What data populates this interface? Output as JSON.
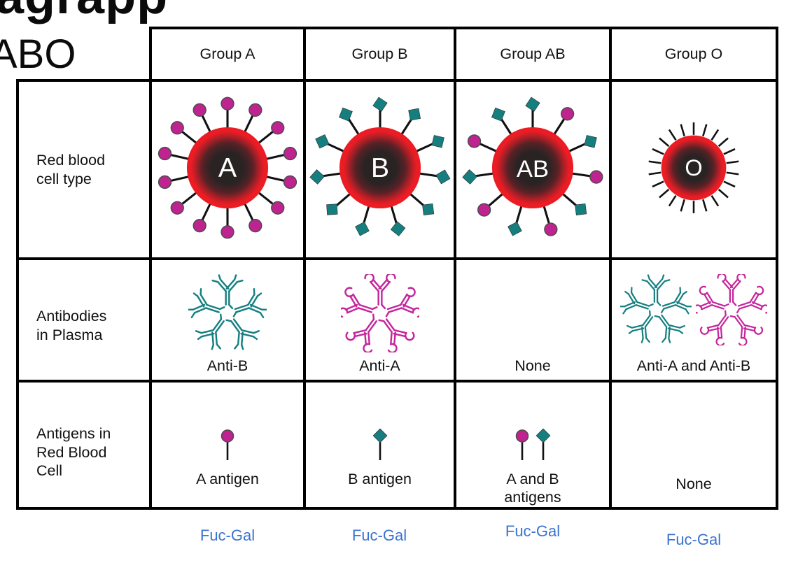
{
  "page": {
    "cropped_app_text": "agrapp",
    "title": "ABO"
  },
  "colors": {
    "antigen_a_magenta": "#bf2390",
    "antigen_b_teal": "#157f80",
    "antibody_anti_a_magenta": "#c5269c",
    "antibody_anti_b_teal": "#167f80",
    "rbc_red": "#ec1c24",
    "rbc_core": "#2a2324",
    "spike_black": "#111111",
    "fucgal_blue": "#3a73d0",
    "table_border": "#000000"
  },
  "table": {
    "row_headers": [
      {
        "lines": [
          "Red blood",
          "cell type"
        ]
      },
      {
        "lines": [
          "Antibodies",
          "in Plasma"
        ]
      },
      {
        "lines": [
          "Antigens in",
          "Red Blood",
          "Cell"
        ]
      }
    ],
    "groups": [
      {
        "header": "Group A",
        "cell_letter": "A",
        "surface_antigens": {
          "shape": "circle",
          "count": 14
        },
        "plasma_antibodies": {
          "label": "Anti-B",
          "stars": [
            "teal"
          ]
        },
        "antigens": {
          "label_lines": [
            "A antigen"
          ],
          "icons": [
            "circle"
          ]
        },
        "footer_label": "Fuc-Gal"
      },
      {
        "header": "Group B",
        "cell_letter": "B",
        "surface_antigens": {
          "shape": "diamond",
          "count": 11
        },
        "plasma_antibodies": {
          "label": "Anti-A",
          "stars": [
            "magenta"
          ]
        },
        "antigens": {
          "label_lines": [
            "B antigen"
          ],
          "icons": [
            "diamond"
          ]
        },
        "footer_label": "Fuc-Gal"
      },
      {
        "header": "Group AB",
        "cell_letter": "AB",
        "surface_antigens": {
          "shape": "alternating",
          "count": 11
        },
        "plasma_antibodies": {
          "label": "None",
          "stars": []
        },
        "antigens": {
          "label_lines": [
            "A and B",
            "antigens"
          ],
          "icons": [
            "circle",
            "diamond"
          ]
        },
        "footer_label": "Fuc-Gal"
      },
      {
        "header": "Group O",
        "cell_letter": "O",
        "surface_antigens": {
          "shape": "none",
          "count": 22
        },
        "plasma_antibodies": {
          "label": "Anti-A and Anti-B",
          "stars": [
            "teal",
            "magenta"
          ]
        },
        "antigens": {
          "label_lines": [
            "None"
          ],
          "icons": []
        },
        "footer_label": "Fuc-Gal"
      }
    ]
  }
}
